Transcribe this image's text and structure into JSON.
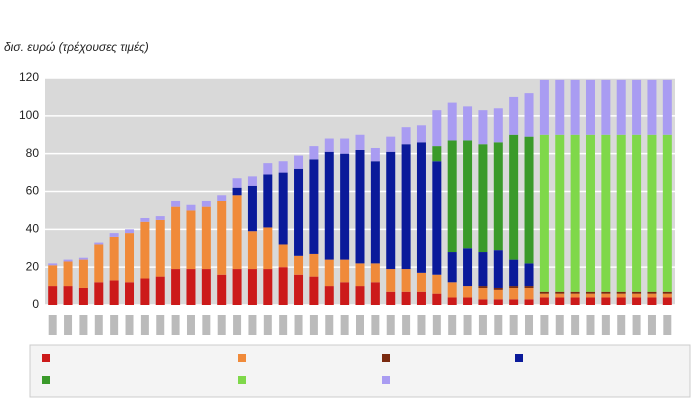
{
  "chart_data": {
    "type": "stacked-bar",
    "ylabel": "δισ. ευρώ (τρέχουσες τιμές)",
    "categories": [
      null,
      null,
      null,
      null,
      null,
      null,
      null,
      null,
      null,
      null,
      null,
      null,
      null,
      null,
      null,
      null,
      null,
      null,
      null,
      null,
      null,
      null,
      null,
      null,
      null,
      null,
      null,
      null,
      null,
      null,
      null,
      null,
      null,
      null,
      null,
      null,
      null,
      null,
      null,
      null,
      null
    ],
    "ylim": [
      0,
      120
    ],
    "yticks": [
      0,
      20,
      40,
      60,
      80,
      100,
      120
    ],
    "grid": true,
    "series": [
      {
        "color": "#cc1a1a",
        "values": [
          10,
          10,
          9,
          12,
          13,
          12,
          14,
          15,
          19,
          19,
          19,
          16,
          19,
          19,
          19,
          20,
          16,
          15,
          10,
          12,
          10,
          12,
          7,
          7,
          7,
          6,
          4,
          4,
          3,
          3,
          3,
          3,
          4,
          4,
          4,
          4,
          4,
          4,
          4,
          4,
          4
        ]
      },
      {
        "color": "#f08a3a",
        "values": [
          11,
          13,
          15,
          20,
          23,
          26,
          30,
          30,
          33,
          31,
          33,
          39,
          39,
          20,
          22,
          12,
          10,
          12,
          14,
          12,
          12,
          10,
          12,
          12,
          10,
          10,
          8,
          6,
          6,
          5,
          6,
          6,
          2,
          2,
          2,
          2,
          2,
          2,
          2,
          2,
          2
        ]
      },
      {
        "color": "#7a2a10",
        "values": [
          0,
          0,
          0,
          0,
          0,
          0,
          0,
          0,
          0,
          0,
          0,
          0,
          0,
          0,
          0,
          0,
          0,
          0,
          0,
          0,
          0,
          0,
          0,
          0,
          0,
          0,
          0,
          0,
          1,
          1,
          1,
          1,
          1,
          1,
          1,
          1,
          1,
          1,
          1,
          1,
          1
        ]
      },
      {
        "color": "#0a1a9a",
        "values": [
          0,
          0,
          0,
          0,
          0,
          0,
          0,
          0,
          0,
          0,
          0,
          0,
          4,
          24,
          28,
          38,
          46,
          50,
          57,
          56,
          60,
          54,
          62,
          66,
          69,
          60,
          16,
          20,
          18,
          20,
          14,
          12,
          0,
          0,
          0,
          0,
          0,
          0,
          0,
          0,
          0
        ]
      },
      {
        "color": "#3a9a2a",
        "values": [
          0,
          0,
          0,
          0,
          0,
          0,
          0,
          0,
          0,
          0,
          0,
          0,
          0,
          0,
          0,
          0,
          0,
          0,
          0,
          0,
          0,
          0,
          0,
          0,
          0,
          8,
          59,
          57,
          57,
          57,
          66,
          67,
          0,
          0,
          0,
          0,
          0,
          0,
          0,
          0,
          0
        ]
      },
      {
        "color": "#7fd84a",
        "values": [
          0,
          0,
          0,
          0,
          0,
          0,
          0,
          0,
          0,
          0,
          0,
          0,
          0,
          0,
          0,
          0,
          0,
          0,
          0,
          0,
          0,
          0,
          0,
          0,
          0,
          0,
          0,
          0,
          0,
          0,
          0,
          0,
          83,
          83,
          83,
          83,
          83,
          83,
          83,
          83,
          83
        ]
      },
      {
        "color": "#a99cf2",
        "values": [
          1,
          1,
          1,
          1,
          2,
          2,
          2,
          2,
          3,
          3,
          3,
          3,
          5,
          5,
          6,
          6,
          7,
          7,
          7,
          8,
          8,
          7,
          8,
          9,
          9,
          19,
          20,
          18,
          18,
          18,
          20,
          23,
          29,
          29,
          29,
          29,
          29,
          29,
          29,
          29,
          29
        ]
      }
    ]
  }
}
